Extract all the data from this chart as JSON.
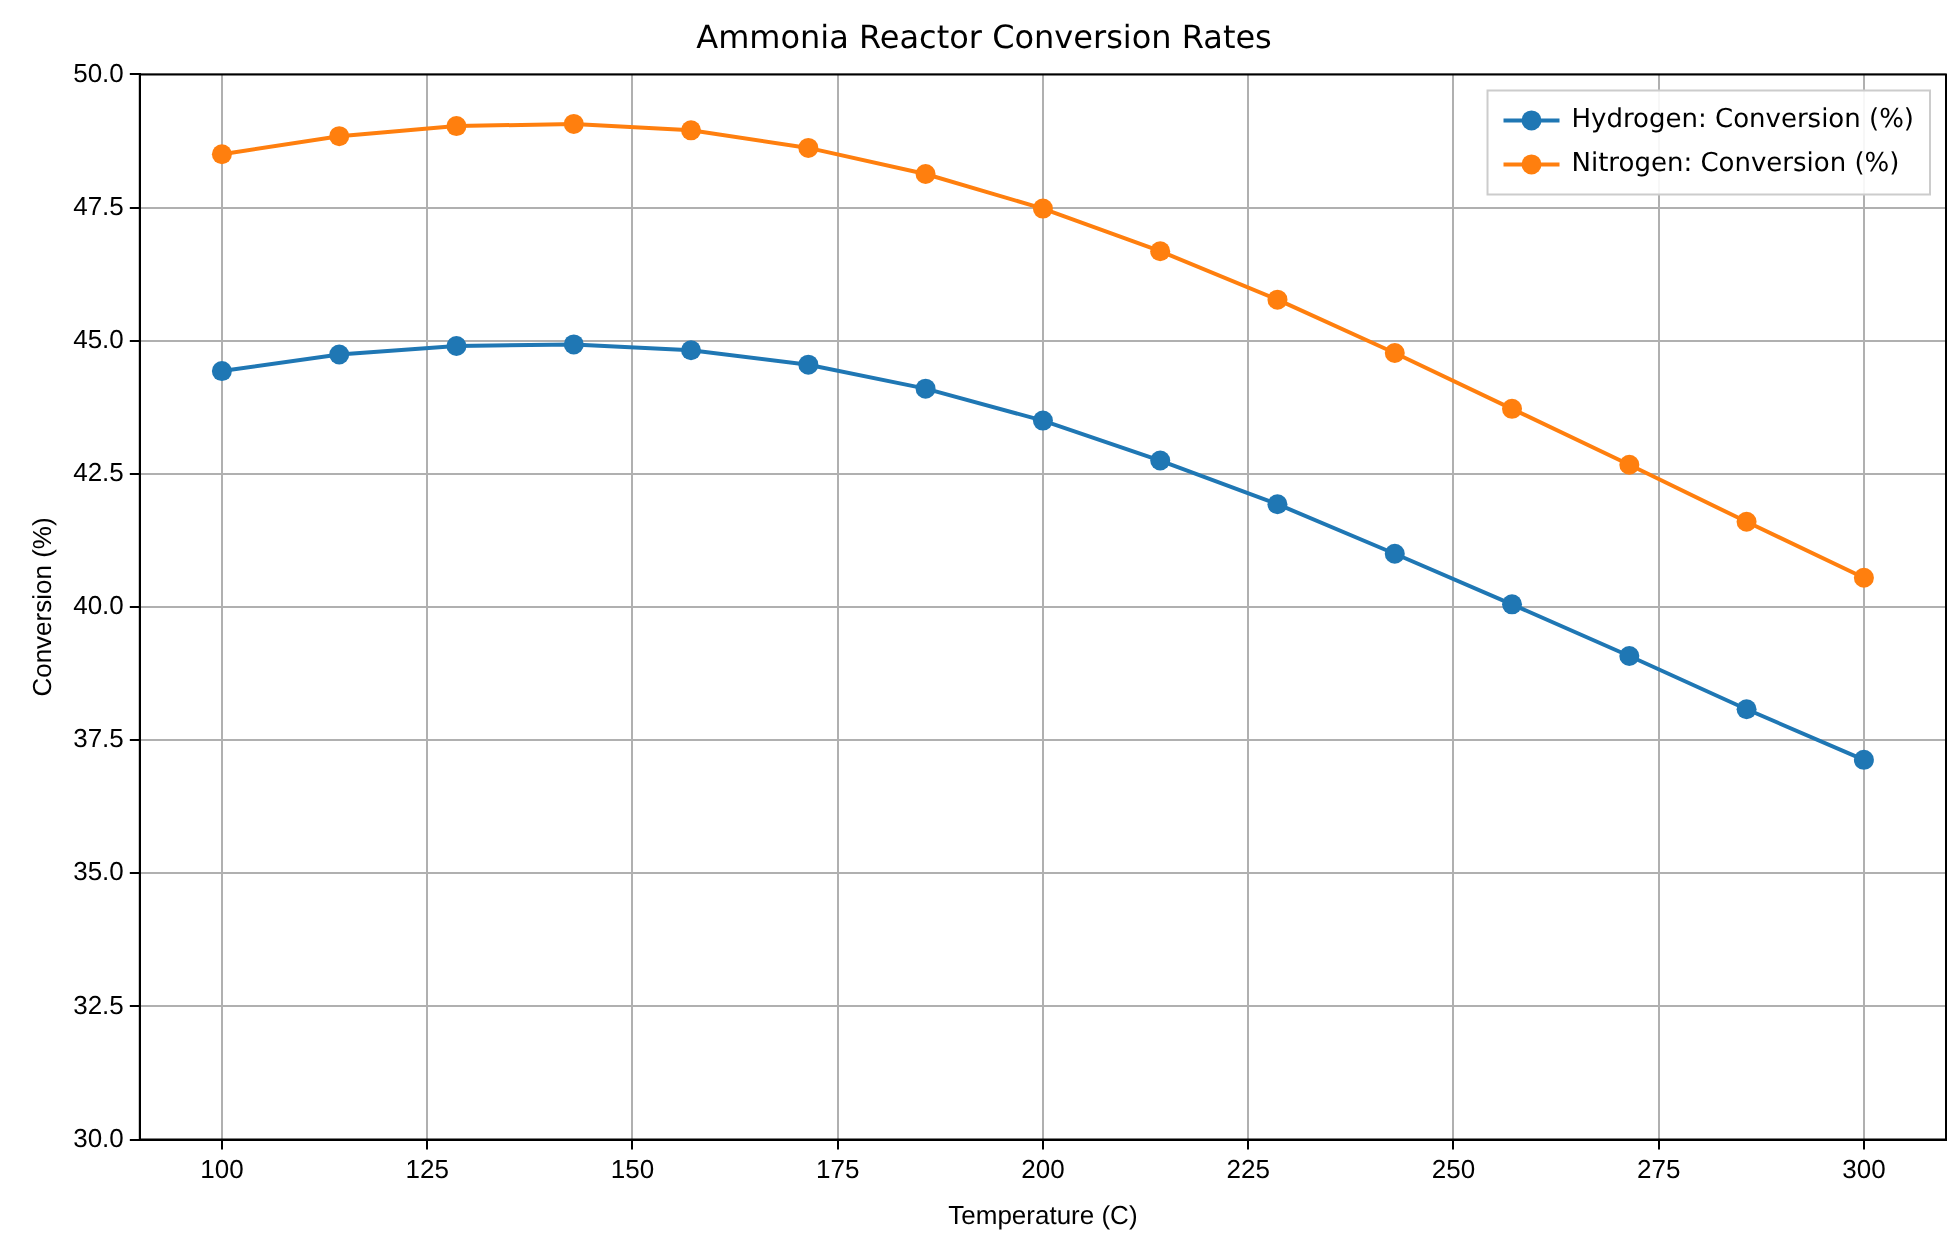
{
  "chart_data": {
    "type": "line",
    "title": "Ammonia Reactor Conversion Rates",
    "xlabel": "Temperature (C)",
    "ylabel": "Conversion (%)",
    "x": [
      100,
      114.29,
      128.57,
      142.86,
      157.14,
      171.43,
      185.71,
      200,
      214.29,
      228.57,
      242.86,
      257.14,
      271.43,
      285.71,
      300
    ],
    "series": [
      {
        "name": "Hydrogen: Conversion (%)",
        "color": "#1f77b4",
        "values": [
          44.43,
          44.74,
          44.9,
          44.93,
          44.82,
          44.55,
          44.1,
          43.5,
          42.75,
          41.93,
          41.0,
          40.05,
          39.08,
          38.08,
          37.13
        ]
      },
      {
        "name": "Nitrogen: Conversion (%)",
        "color": "#ff7f0e",
        "values": [
          48.5,
          48.84,
          49.03,
          49.07,
          48.95,
          48.62,
          48.13,
          47.48,
          46.68,
          45.77,
          44.77,
          43.72,
          42.67,
          41.6,
          40.55
        ]
      }
    ],
    "xlim": [
      90,
      310
    ],
    "xticks": [
      100,
      125,
      150,
      175,
      200,
      225,
      250,
      275,
      300
    ],
    "ylim": [
      30,
      50
    ],
    "yticks": [
      {
        "value": 30,
        "label": "30.0"
      },
      {
        "value": 32.5,
        "label": "32.5"
      },
      {
        "value": 35,
        "label": "35.0"
      },
      {
        "value": 37.5,
        "label": "37.5"
      },
      {
        "value": 40,
        "label": "40.0"
      },
      {
        "value": 42.5,
        "label": "42.5"
      },
      {
        "value": 45,
        "label": "45.0"
      },
      {
        "value": 47.5,
        "label": "47.5"
      },
      {
        "value": 50,
        "label": "50.0"
      }
    ],
    "grid": true,
    "legend": "top right",
    "marker": "circle",
    "line_style": "solid"
  }
}
